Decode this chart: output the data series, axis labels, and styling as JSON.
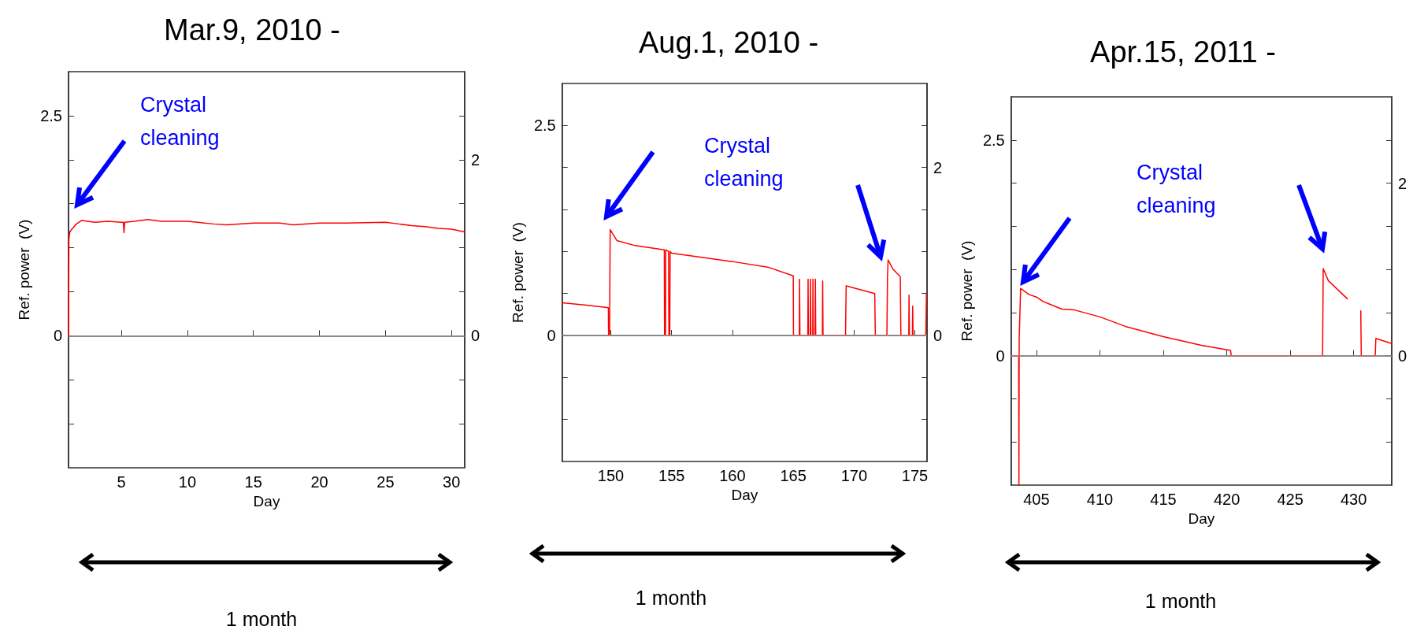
{
  "chart_data": [
    {
      "type": "line",
      "title": "Mar.9, 2010 -",
      "xlabel": "Day",
      "ylabel": "Ref. power  (V)",
      "annotations": [
        "Crystal cleaning",
        "1 month"
      ],
      "series": [
        {
          "color": "#ff0000",
          "x": [
            1.0,
            1.03,
            1.1,
            1.3,
            1.6,
            2,
            3,
            4,
            5,
            5.15,
            5.2,
            5.25,
            6,
            7,
            8,
            10,
            12,
            13,
            15,
            17,
            18,
            20,
            22,
            25,
            26,
            27,
            28,
            29,
            30,
            31
          ],
          "values": [
            0,
            1.1,
            1.18,
            1.22,
            1.27,
            1.31,
            1.29,
            1.3,
            1.29,
            1.29,
            1.17,
            1.29,
            1.3,
            1.32,
            1.3,
            1.3,
            1.27,
            1.26,
            1.28,
            1.28,
            1.26,
            1.28,
            1.28,
            1.29,
            1.27,
            1.25,
            1.24,
            1.22,
            1.21,
            1.18
          ]
        }
      ],
      "xlim": [
        1,
        31
      ],
      "xticks": [
        5,
        10,
        15,
        20,
        25,
        30
      ],
      "ylim": [
        -1.5,
        3
      ],
      "yticks": [
        {
          "value": -1,
          "label": null
        },
        {
          "value": -0.5,
          "label": null
        },
        {
          "value": 0,
          "label": "0"
        },
        {
          "value": 0.5,
          "label": null
        },
        {
          "value": 1,
          "label": null
        },
        {
          "value": 1.5,
          "label": null
        },
        {
          "value": 2,
          "label": null
        },
        {
          "value": 2.5,
          "label": "2.5"
        }
      ],
      "y2lim": [
        -1.5,
        3
      ],
      "y2ticks": [
        {
          "value": -1,
          "label": null
        },
        {
          "value": -0.5,
          "label": null
        },
        {
          "value": 0,
          "label": "0"
        },
        {
          "value": 0.5,
          "label": null
        },
        {
          "value": 1,
          "label": null
        },
        {
          "value": 1.5,
          "label": null
        },
        {
          "value": 2,
          "label": "2"
        },
        {
          "value": 2.5,
          "label": null
        }
      ],
      "ref_lines": [
        {
          "axis": "y",
          "value": 0,
          "color": "#999999"
        }
      ],
      "marker": "none",
      "grid": false
    },
    {
      "type": "line",
      "title": "Aug.1, 2010 -",
      "xlabel": "Day",
      "ylabel": "Ref. power  (V)",
      "annotations": [
        "Crystal cleaning",
        "1 month"
      ],
      "series": [
        {
          "color": "#ff0000",
          "x": [
            146,
            148,
            149.8,
            149.82,
            149.9,
            149.95,
            150.5,
            152,
            154.4,
            154.42,
            154.5,
            154.52,
            154.75,
            154.78,
            154.85,
            154.88,
            155,
            157,
            160,
            163,
            165,
            165.02,
            165.5,
            165.52,
            165.55,
            166.2,
            166.22,
            166.25,
            166.4,
            166.42,
            166.45,
            166.6,
            166.62,
            166.65,
            166.8,
            166.82,
            166.85,
            167.4,
            167.42,
            167.45,
            169.3,
            169.35,
            171.7,
            171.75,
            172.7,
            172.75,
            172.8,
            173.2,
            173.8,
            173.85,
            174.5,
            174.52,
            174.55,
            174.8,
            174.82,
            174.85,
            175.9,
            175.95
          ],
          "values": [
            0.39,
            0.36,
            0.33,
            0,
            0,
            1.26,
            1.13,
            1.07,
            1.02,
            0,
            0,
            1.02,
            1.0,
            0,
            0,
            1.0,
            0.98,
            0.94,
            0.88,
            0.81,
            0.71,
            0,
            0,
            0.67,
            0,
            0,
            0.67,
            0,
            0,
            0.67,
            0,
            0,
            0.67,
            0,
            0,
            0.67,
            0,
            0,
            0.65,
            0,
            0,
            0.59,
            0.5,
            0,
            0,
            0.7,
            0.9,
            0.79,
            0.7,
            0,
            0,
            0.48,
            0,
            0,
            0.35,
            0,
            0,
            0.5
          ]
        }
      ],
      "xlim": [
        146,
        176
      ],
      "xticks": [
        150,
        155,
        160,
        165,
        170,
        175
      ],
      "ylim": [
        -1.5,
        3
      ],
      "yticks": [
        {
          "value": -1,
          "label": null
        },
        {
          "value": -0.5,
          "label": null
        },
        {
          "value": 0,
          "label": "0"
        },
        {
          "value": 0.5,
          "label": null
        },
        {
          "value": 1,
          "label": null
        },
        {
          "value": 1.5,
          "label": null
        },
        {
          "value": 2,
          "label": null
        },
        {
          "value": 2.5,
          "label": "2.5"
        }
      ],
      "y2lim": [
        -1.5,
        3
      ],
      "y2ticks": [
        {
          "value": -1,
          "label": null
        },
        {
          "value": -0.5,
          "label": null
        },
        {
          "value": 0,
          "label": "0"
        },
        {
          "value": 0.5,
          "label": null
        },
        {
          "value": 1,
          "label": null
        },
        {
          "value": 1.5,
          "label": null
        },
        {
          "value": 2,
          "label": "2"
        },
        {
          "value": 2.5,
          "label": null
        }
      ],
      "ref_lines": [
        {
          "axis": "y",
          "value": 0,
          "color": "#999999"
        }
      ],
      "marker": "none",
      "grid": false
    },
    {
      "type": "line",
      "title": "Apr.15, 2011 -",
      "xlabel": "Day",
      "ylabel": "Ref. power  (V)",
      "annotations": [
        "Crystal cleaning",
        "1 month"
      ],
      "series": [
        {
          "color": "#ff0000",
          "x": [
            403,
            403.6,
            403.62,
            403.64,
            403.7,
            403.75,
            404.4,
            405,
            405.5,
            406,
            407,
            408,
            410,
            412,
            415,
            418,
            420.3,
            420.35,
            424,
            427.55,
            427.6,
            428,
            429.5,
            429.6,
            430.5,
            430.56,
            430.6,
            431.7,
            431.75,
            433
          ],
          "values": [
            0,
            0,
            -1.5,
            0.2,
            0.5,
            0.78,
            0.71,
            0.68,
            0.63,
            0.6,
            0.54,
            0.53,
            0.45,
            0.34,
            0.22,
            0.12,
            0.06,
            0,
            0,
            0,
            1.01,
            0.87,
            0.66,
            null,
            null,
            0.52,
            0,
            0,
            0.2,
            0.14
          ]
        }
      ],
      "xlim": [
        403,
        433
      ],
      "xticks": [
        405,
        410,
        415,
        420,
        425,
        430
      ],
      "ylim": [
        -1.5,
        3
      ],
      "yticks": [
        {
          "value": -1,
          "label": null
        },
        {
          "value": -0.5,
          "label": null
        },
        {
          "value": 0,
          "label": "0"
        },
        {
          "value": 0.5,
          "label": null
        },
        {
          "value": 1,
          "label": null
        },
        {
          "value": 1.5,
          "label": null
        },
        {
          "value": 2,
          "label": null
        },
        {
          "value": 2.5,
          "label": "2.5"
        }
      ],
      "y2lim": [
        -1.5,
        3
      ],
      "y2ticks": [
        {
          "value": -1,
          "label": null
        },
        {
          "value": -0.5,
          "label": null
        },
        {
          "value": 0,
          "label": "0"
        },
        {
          "value": 0.5,
          "label": null
        },
        {
          "value": 1,
          "label": null
        },
        {
          "value": 1.5,
          "label": null
        },
        {
          "value": 2,
          "label": "2"
        },
        {
          "value": 2.5,
          "label": null
        }
      ],
      "ref_lines": [
        {
          "axis": "y",
          "value": 0,
          "color": "#999999"
        }
      ],
      "marker": "none",
      "grid": false
    }
  ]
}
